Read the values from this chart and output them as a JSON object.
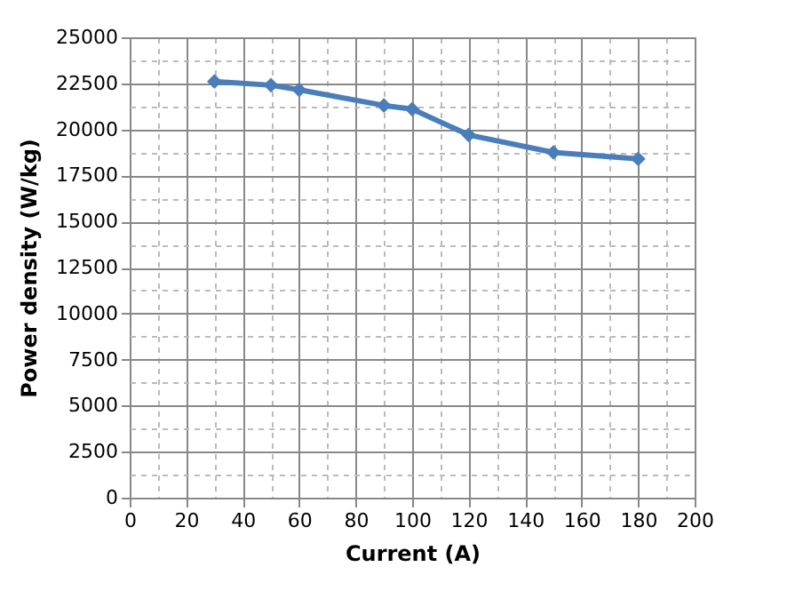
{
  "chart_data": {
    "type": "line",
    "xlabel": "Current   (A)",
    "ylabel": "Power density (W/kg)",
    "x": [
      30,
      50,
      60,
      90,
      100,
      120,
      150,
      180
    ],
    "series": [
      {
        "color": "#4a7ebb",
        "values": [
          22600,
          22400,
          22150,
          21300,
          21100,
          19700,
          18750,
          18400
        ]
      }
    ],
    "xlim": [
      0,
      200
    ],
    "xticks": [
      0,
      20,
      40,
      60,
      80,
      100,
      120,
      140,
      160,
      180,
      200
    ],
    "ylim": [
      0,
      25000
    ],
    "yticks": [
      0,
      2500,
      5000,
      7500,
      10000,
      12500,
      15000,
      17500,
      20000,
      22500,
      25000
    ],
    "grid": true,
    "marker": "diamond",
    "line_style": "solid"
  }
}
